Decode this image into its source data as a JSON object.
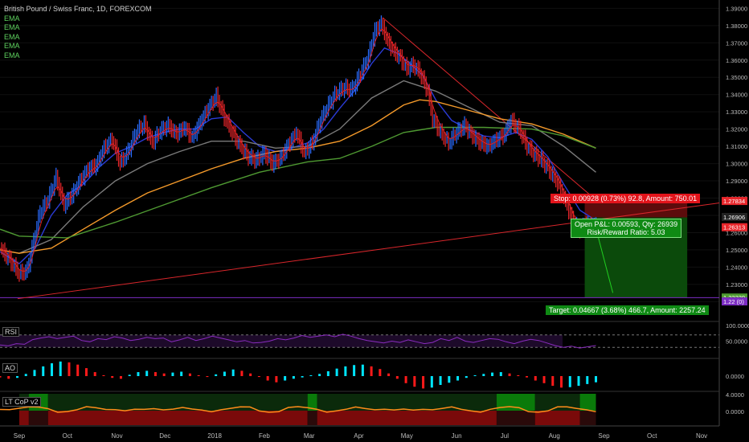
{
  "header": {
    "symbol": "British Pound / Swiss Franc, 1D, FOREXCOM",
    "ema_labels": [
      "EMA",
      "EMA",
      "EMA",
      "EMA",
      "EMA"
    ]
  },
  "colors": {
    "background": "#000000",
    "up": "#2a6cff",
    "down": "#e8262b",
    "trendline": "#d8262b",
    "support": "#7b2cc2",
    "ema_red": "#e02020",
    "ema_blue": "#2b3bd6",
    "ema_gray": "#7a7a7a",
    "ema_orange": "#f59a2a",
    "ema_green": "#4f9a32",
    "rsi": "#8a2bbf",
    "ao_up": "#00e5ff",
    "ao_down": "#ff1a1a",
    "lt_green": "#0a7a0a",
    "lt_red": "#7a0a0a",
    "lt_line": "#ff8c1a"
  },
  "chart_data": {
    "type": "line",
    "title": "British Pound / Swiss Franc, 1D, FOREXCOM",
    "x_axis": {
      "ticks": [
        "Sep",
        "Oct",
        "Nov",
        "Dec",
        "2018",
        "Feb",
        "Mar",
        "Apr",
        "May",
        "Jun",
        "Jul",
        "Aug",
        "Sep",
        "Oct",
        "Nov"
      ],
      "tick_days": [
        0,
        30,
        61,
        91,
        122,
        153,
        181,
        212,
        242,
        273,
        303,
        334,
        365,
        395,
        426
      ],
      "range_days": [
        -12,
        437
      ]
    },
    "y_axis": {
      "ticks": [
        1.39,
        1.38,
        1.37,
        1.36,
        1.35,
        1.34,
        1.33,
        1.32,
        1.31,
        1.3,
        1.29,
        1.28,
        1.27,
        1.26,
        1.25,
        1.24,
        1.23,
        1.22
      ],
      "tick_labels": [
        "1.39000",
        "1.38000",
        "1.37000",
        "1.36000",
        "1.35000",
        "1.34000",
        "1.33000",
        "1.32000",
        "1.31000",
        "1.30000",
        "1.29000",
        "1.28000",
        "1.27000",
        "1.26000",
        "1.25000",
        "1.24000",
        "1.23000",
        "1.22000"
      ],
      "range": [
        1.2155,
        1.3925
      ]
    },
    "series": [
      {
        "kind": "price",
        "points": [
          [
            -12,
            1.251
          ],
          [
            -5,
            1.243
          ],
          [
            0,
            1.236
          ],
          [
            5,
            1.238
          ],
          [
            9,
            1.255
          ],
          [
            13,
            1.272
          ],
          [
            18,
            1.279
          ],
          [
            23,
            1.292
          ],
          [
            28,
            1.276
          ],
          [
            33,
            1.282
          ],
          [
            38,
            1.29
          ],
          [
            43,
            1.297
          ],
          [
            48,
            1.299
          ],
          [
            53,
            1.309
          ],
          [
            58,
            1.314
          ],
          [
            63,
            1.3
          ],
          [
            68,
            1.307
          ],
          [
            73,
            1.318
          ],
          [
            78,
            1.323
          ],
          [
            83,
            1.312
          ],
          [
            88,
            1.319
          ],
          [
            93,
            1.322
          ],
          [
            98,
            1.317
          ],
          [
            103,
            1.321
          ],
          [
            108,
            1.315
          ],
          [
            113,
            1.324
          ],
          [
            118,
            1.332
          ],
          [
            123,
            1.339
          ],
          [
            128,
            1.327
          ],
          [
            133,
            1.318
          ],
          [
            138,
            1.31
          ],
          [
            143,
            1.304
          ],
          [
            148,
            1.302
          ],
          [
            153,
            1.306
          ],
          [
            158,
            1.3
          ],
          [
            163,
            1.303
          ],
          [
            168,
            1.311
          ],
          [
            173,
            1.318
          ],
          [
            178,
            1.306
          ],
          [
            183,
            1.312
          ],
          [
            188,
            1.325
          ],
          [
            193,
            1.334
          ],
          [
            198,
            1.341
          ],
          [
            203,
            1.344
          ],
          [
            208,
            1.343
          ],
          [
            213,
            1.352
          ],
          [
            218,
            1.362
          ],
          [
            222,
            1.377
          ],
          [
            226,
            1.381
          ],
          [
            230,
            1.371
          ],
          [
            234,
            1.365
          ],
          [
            238,
            1.361
          ],
          [
            242,
            1.355
          ],
          [
            246,
            1.357
          ],
          [
            250,
            1.353
          ],
          [
            255,
            1.342
          ],
          [
            258,
            1.326
          ],
          [
            263,
            1.318
          ],
          [
            268,
            1.312
          ],
          [
            273,
            1.318
          ],
          [
            278,
            1.322
          ],
          [
            283,
            1.316
          ],
          [
            288,
            1.312
          ],
          [
            293,
            1.31
          ],
          [
            298,
            1.314
          ],
          [
            303,
            1.317
          ],
          [
            307,
            1.325
          ],
          [
            312,
            1.32
          ],
          [
            317,
            1.31
          ],
          [
            322,
            1.305
          ],
          [
            326,
            1.302
          ],
          [
            331,
            1.296
          ],
          [
            336,
            1.289
          ],
          [
            341,
            1.278
          ],
          [
            346,
            1.266
          ],
          [
            350,
            1.262
          ],
          [
            354,
            1.266
          ],
          [
            357,
            1.263
          ],
          [
            360,
            1.265
          ]
        ]
      },
      {
        "kind": "ema",
        "color_key": "ema_blue",
        "points": [
          [
            -12,
            1.249
          ],
          [
            0,
            1.242
          ],
          [
            10,
            1.251
          ],
          [
            20,
            1.27
          ],
          [
            30,
            1.282
          ],
          [
            40,
            1.288
          ],
          [
            50,
            1.298
          ],
          [
            60,
            1.306
          ],
          [
            70,
            1.31
          ],
          [
            80,
            1.315
          ],
          [
            90,
            1.318
          ],
          [
            100,
            1.32
          ],
          [
            110,
            1.32
          ],
          [
            120,
            1.326
          ],
          [
            130,
            1.327
          ],
          [
            140,
            1.318
          ],
          [
            150,
            1.31
          ],
          [
            160,
            1.307
          ],
          [
            170,
            1.309
          ],
          [
            180,
            1.312
          ],
          [
            190,
            1.32
          ],
          [
            200,
            1.332
          ],
          [
            210,
            1.343
          ],
          [
            220,
            1.358
          ],
          [
            228,
            1.367
          ],
          [
            236,
            1.364
          ],
          [
            244,
            1.358
          ],
          [
            252,
            1.351
          ],
          [
            260,
            1.337
          ],
          [
            270,
            1.325
          ],
          [
            280,
            1.32
          ],
          [
            290,
            1.316
          ],
          [
            300,
            1.315
          ],
          [
            310,
            1.318
          ],
          [
            320,
            1.314
          ],
          [
            330,
            1.304
          ],
          [
            340,
            1.288
          ],
          [
            350,
            1.273
          ],
          [
            360,
            1.267
          ]
        ]
      },
      {
        "kind": "ema",
        "color_key": "ema_gray",
        "points": [
          [
            -12,
            1.25
          ],
          [
            0,
            1.248
          ],
          [
            20,
            1.256
          ],
          [
            40,
            1.275
          ],
          [
            60,
            1.29
          ],
          [
            80,
            1.3
          ],
          [
            100,
            1.307
          ],
          [
            120,
            1.313
          ],
          [
            140,
            1.313
          ],
          [
            160,
            1.309
          ],
          [
            180,
            1.31
          ],
          [
            200,
            1.32
          ],
          [
            220,
            1.338
          ],
          [
            240,
            1.348
          ],
          [
            260,
            1.342
          ],
          [
            280,
            1.333
          ],
          [
            300,
            1.324
          ],
          [
            320,
            1.322
          ],
          [
            340,
            1.31
          ],
          [
            360,
            1.295
          ]
        ]
      },
      {
        "kind": "ema",
        "color_key": "ema_orange",
        "points": [
          [
            -12,
            1.25
          ],
          [
            0,
            1.248
          ],
          [
            20,
            1.251
          ],
          [
            40,
            1.262
          ],
          [
            60,
            1.273
          ],
          [
            80,
            1.283
          ],
          [
            100,
            1.29
          ],
          [
            120,
            1.297
          ],
          [
            140,
            1.303
          ],
          [
            160,
            1.307
          ],
          [
            180,
            1.309
          ],
          [
            200,
            1.313
          ],
          [
            220,
            1.322
          ],
          [
            240,
            1.334
          ],
          [
            250,
            1.337
          ],
          [
            260,
            1.336
          ],
          [
            280,
            1.331
          ],
          [
            300,
            1.326
          ],
          [
            320,
            1.323
          ],
          [
            340,
            1.317
          ],
          [
            360,
            1.309
          ]
        ]
      },
      {
        "kind": "ema",
        "color_key": "ema_green",
        "points": [
          [
            -12,
            1.262
          ],
          [
            0,
            1.258
          ],
          [
            30,
            1.257
          ],
          [
            60,
            1.266
          ],
          [
            90,
            1.276
          ],
          [
            120,
            1.286
          ],
          [
            150,
            1.295
          ],
          [
            180,
            1.301
          ],
          [
            200,
            1.303
          ],
          [
            220,
            1.31
          ],
          [
            240,
            1.318
          ],
          [
            260,
            1.321
          ],
          [
            290,
            1.321
          ],
          [
            320,
            1.32
          ],
          [
            340,
            1.316
          ],
          [
            360,
            1.309
          ]
        ]
      }
    ],
    "trendlines": [
      {
        "color_key": "trendline",
        "from": [
          -1,
          1.2217
        ],
        "to": [
          437,
          1.2772
        ]
      },
      {
        "color_key": "trendline",
        "from": [
          227,
          1.3845
        ],
        "to": [
          362,
          1.2774
        ]
      }
    ],
    "support_level": {
      "y": 1.2223,
      "x_from": -12,
      "x_to": 437
    },
    "position": {
      "x_from": 353,
      "x_to": 417,
      "entry": 1.2688,
      "stop": 1.2783,
      "target": 1.2223,
      "stop_text": "Stop: 0.00928 (0.73%) 92.8, Amount: 750.01",
      "pnl_text": "Open P&L: 0.00593, Qty: 26939",
      "rr_text": "Risk/Reward Ratio: 5.03",
      "target_text": "Target: 0.04667 (3.68%) 466.7, Amount: 2257.24"
    },
    "price_tags": [
      {
        "text": "1.27834",
        "value": 1.27834,
        "color_key": "down"
      },
      {
        "text": "1.26906",
        "value": 1.26906,
        "color_key": "background"
      },
      {
        "text": "1.26313",
        "value": 1.26313,
        "color_key": "down"
      },
      {
        "text": "1.22239",
        "value": 1.22239,
        "color_key": "ema_green"
      },
      {
        "text": "1.22 (0)",
        "value": 1.22013,
        "color_key": "support"
      }
    ]
  },
  "indicators": {
    "rsi": {
      "label": "RSI",
      "tick_labels": [
        "100.0000",
        "50.0000",
        "0.0000"
      ],
      "range": [
        0,
        100
      ],
      "overbought": 70,
      "oversold": 30,
      "values": [
        38,
        35,
        42,
        40,
        55,
        60,
        64,
        58,
        62,
        66,
        52,
        48,
        58,
        55,
        64,
        60,
        52,
        56,
        62,
        58,
        60,
        48,
        54,
        62,
        52,
        58,
        66,
        60,
        54,
        48,
        52,
        44,
        46,
        50,
        58,
        54,
        60,
        68,
        62,
        66,
        70,
        64,
        72,
        66,
        58,
        52,
        48,
        44,
        50,
        46,
        54,
        48,
        42,
        46,
        58,
        52,
        62,
        50,
        46,
        52,
        58,
        56,
        48,
        42,
        50,
        56,
        52,
        44,
        36,
        30,
        34,
        28,
        32,
        36
      ]
    },
    "ao": {
      "label": "AO",
      "tick_labels": [
        "0.0000"
      ],
      "values": [
        -0.3,
        -0.6,
        -0.4,
        0.5,
        1.4,
        2.2,
        2.9,
        3.3,
        3.1,
        2.6,
        1.8,
        0.9,
        0.2,
        -0.4,
        -0.6,
        0.3,
        0.9,
        1.2,
        0.9,
        0.6,
        0.8,
        1.0,
        0.6,
        0.2,
        -0.2,
        0.4,
        1.0,
        1.5,
        1.2,
        0.6,
        -0.2,
        -1.0,
        -1.4,
        -1.0,
        -0.6,
        -0.3,
        0.2,
        0.5,
        1.1,
        1.7,
        2.2,
        2.5,
        2.6,
        2.2,
        1.6,
        0.6,
        -0.6,
        -1.6,
        -2.4,
        -2.8,
        -2.6,
        -2.0,
        -1.5,
        -1.0,
        -0.4,
        0.2,
        0.5,
        0.8,
        0.9,
        0.6,
        0.2,
        -0.3,
        -1.0,
        -1.6,
        -2.2,
        -2.6,
        -2.5,
        -2.2,
        -1.8,
        -1.4
      ]
    },
    "lt_cop": {
      "label": "LT CoP v2",
      "tick_labels": [
        "4.0000",
        "0.0000"
      ],
      "zones": [
        [
          0,
          0
        ],
        [
          6,
          1
        ],
        [
          18,
          0
        ],
        [
          180,
          1
        ],
        [
          186,
          0
        ],
        [
          298,
          1
        ],
        [
          322,
          0
        ],
        [
          350,
          1
        ],
        [
          362,
          0
        ],
        [
          395,
          1
        ],
        [
          410,
          0
        ],
        [
          425,
          1
        ],
        [
          437,
          1
        ]
      ]
    }
  }
}
